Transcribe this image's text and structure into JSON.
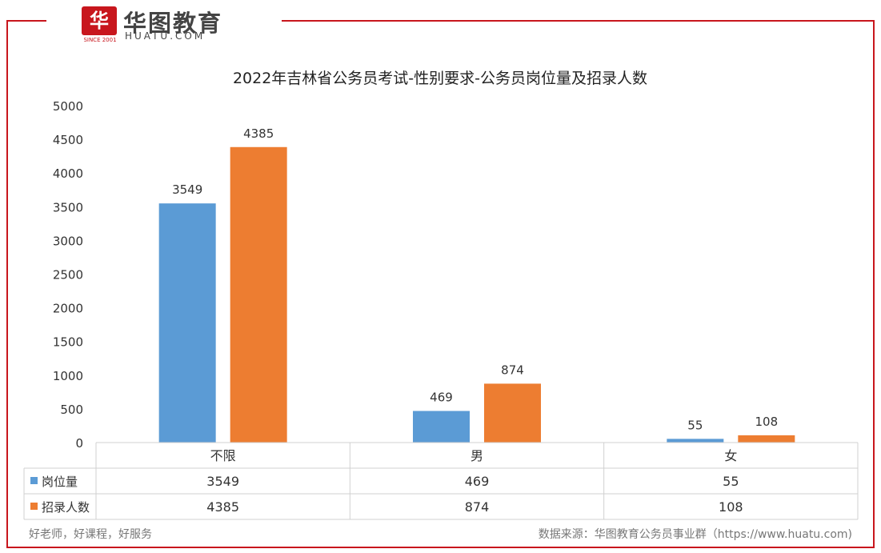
{
  "brand": {
    "logo_mark": "华",
    "name": "华图教育",
    "name_en": "HUATU.COM",
    "since": "SINCE 2001"
  },
  "footer": {
    "slogan": "好老师，好课程，好服务",
    "source": "数据来源：华图教育公务员事业群（https://www.huatu.com)"
  },
  "colors": {
    "frame": "#c8161d",
    "series_positions": "#5b9bd5",
    "series_recruits": "#ed7d31"
  },
  "chart_data": {
    "type": "bar",
    "title": "2022年吉林省公务员考试-性别要求-公务员岗位量及招录人数",
    "categories": [
      "不限",
      "男",
      "女"
    ],
    "series": [
      {
        "name": "岗位量",
        "values": [
          3549,
          469,
          55
        ]
      },
      {
        "name": "招录人数",
        "values": [
          4385,
          874,
          108
        ]
      }
    ],
    "ylim": [
      0,
      5000
    ],
    "yticks": [
      0,
      500,
      1000,
      1500,
      2000,
      2500,
      3000,
      3500,
      4000,
      4500,
      5000
    ],
    "xlabel": "",
    "ylabel": "",
    "grid": false,
    "legend": "data-table"
  }
}
